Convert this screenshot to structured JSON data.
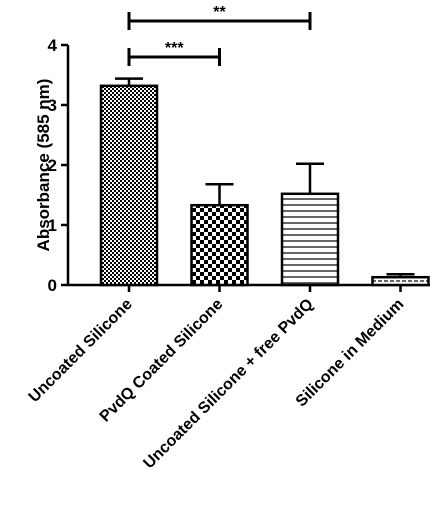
{
  "chart_data": {
    "type": "bar",
    "title": "",
    "xlabel": "",
    "ylabel": "Absorbance (585 nm)",
    "ylim": [
      0,
      4
    ],
    "yticks": [
      0,
      1,
      2,
      3,
      4
    ],
    "grid": false,
    "categories": [
      "Uncoated Silicone",
      "PvdQ Coated Silicone",
      "Uncoated Silicone + free PvdQ",
      "Silicone in Medium"
    ],
    "values": [
      3.32,
      1.33,
      1.52,
      0.13
    ],
    "errors": [
      0.12,
      0.35,
      0.5,
      0.05
    ],
    "patterns": [
      "fine-checker",
      "coarse-checker",
      "horizontal-lines",
      "horizontal-lines-dashed"
    ],
    "significance": [
      {
        "from": 0,
        "to": 2,
        "label": "**"
      },
      {
        "from": 0,
        "to": 1,
        "label": "***"
      }
    ]
  }
}
